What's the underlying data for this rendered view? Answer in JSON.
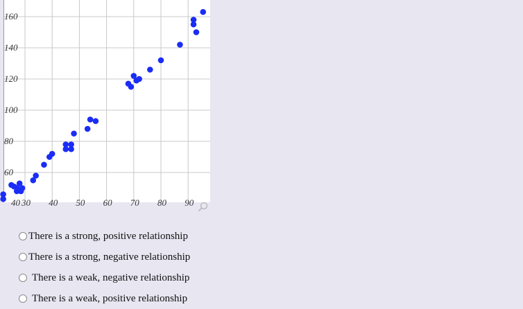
{
  "chart_data": {
    "type": "scatter",
    "xlim": [
      25,
      95
    ],
    "ylim": [
      45,
      165
    ],
    "x_ticks": [
      30,
      40,
      50,
      60,
      70,
      80,
      90
    ],
    "y_ticks": [
      60,
      80,
      100,
      120,
      140,
      160
    ],
    "x_tick_labels": [
      "30",
      "40",
      "50",
      "60",
      "70",
      "80",
      "90"
    ],
    "y_tick_labels": [
      "60",
      "80",
      "100",
      "120",
      "140",
      "160"
    ],
    "corner_label": "40",
    "grid": true,
    "marker_color": "#1a2df5",
    "points": [
      {
        "x": 22,
        "y": 46
      },
      {
        "x": 22,
        "y": 43
      },
      {
        "x": 25,
        "y": 52
      },
      {
        "x": 26,
        "y": 51
      },
      {
        "x": 27,
        "y": 50
      },
      {
        "x": 28,
        "y": 53
      },
      {
        "x": 27,
        "y": 48
      },
      {
        "x": 28.5,
        "y": 48
      },
      {
        "x": 29,
        "y": 50
      },
      {
        "x": 33,
        "y": 55
      },
      {
        "x": 34,
        "y": 58
      },
      {
        "x": 37,
        "y": 65
      },
      {
        "x": 39,
        "y": 70
      },
      {
        "x": 40,
        "y": 72
      },
      {
        "x": 45,
        "y": 75
      },
      {
        "x": 45,
        "y": 78
      },
      {
        "x": 47,
        "y": 75
      },
      {
        "x": 47,
        "y": 78
      },
      {
        "x": 48,
        "y": 85
      },
      {
        "x": 53,
        "y": 88
      },
      {
        "x": 54,
        "y": 94
      },
      {
        "x": 56,
        "y": 93
      },
      {
        "x": 68,
        "y": 117
      },
      {
        "x": 69,
        "y": 115
      },
      {
        "x": 70,
        "y": 122
      },
      {
        "x": 71,
        "y": 119
      },
      {
        "x": 72,
        "y": 120
      },
      {
        "x": 76,
        "y": 126
      },
      {
        "x": 80,
        "y": 132
      },
      {
        "x": 87,
        "y": 142
      },
      {
        "x": 92,
        "y": 158
      },
      {
        "x": 92,
        "y": 155
      },
      {
        "x": 93,
        "y": 150
      },
      {
        "x": 95.5,
        "y": 163
      }
    ]
  },
  "question": {
    "options": [
      {
        "label": "There is a strong, positive relationship"
      },
      {
        "label": "There is a strong, negative relationship"
      },
      {
        "label": "There is a weak, negative relationship"
      },
      {
        "label": "There is a weak, positive relationship"
      }
    ]
  }
}
